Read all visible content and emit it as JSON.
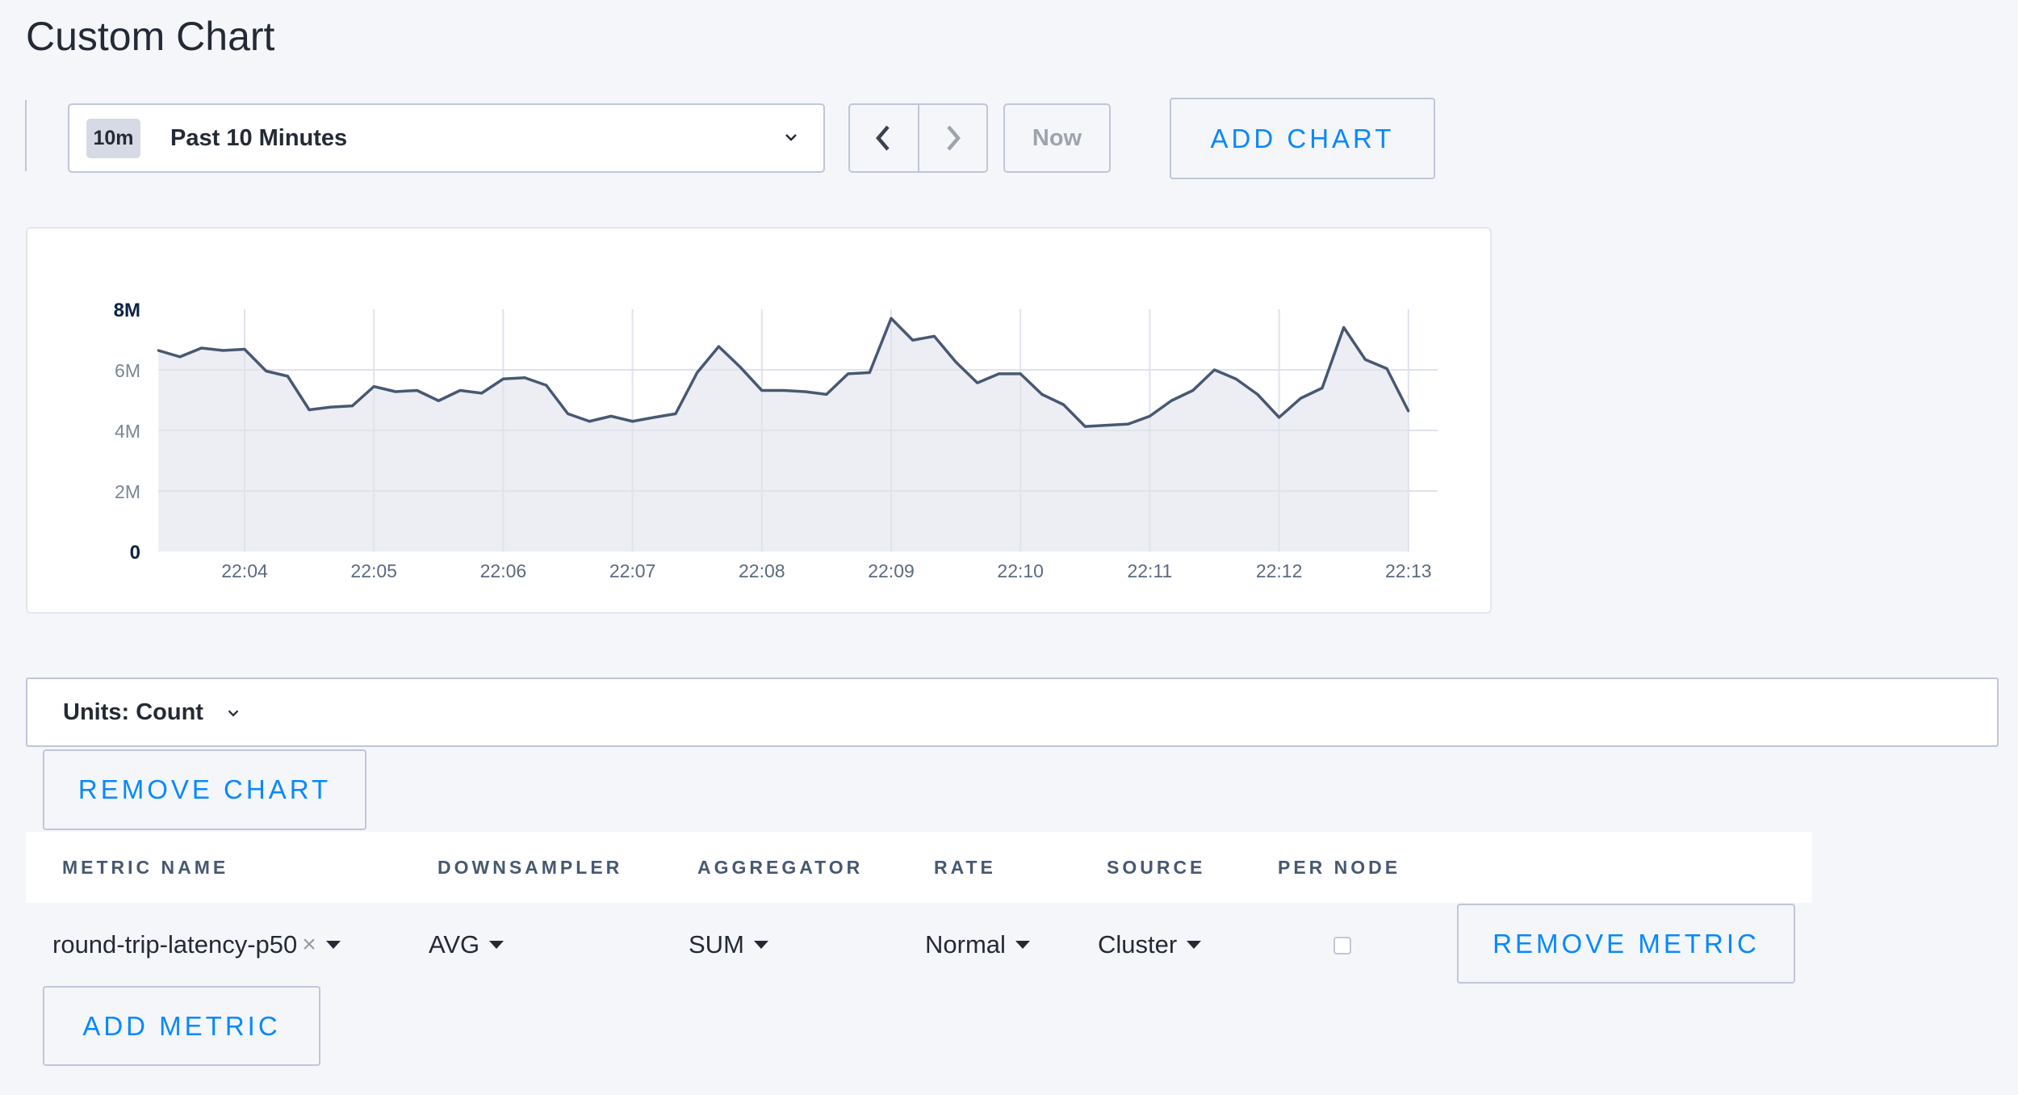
{
  "page": {
    "title": "Custom Chart"
  },
  "toolbar": {
    "range_badge": "10m",
    "range_label": "Past 10 Minutes",
    "now_label": "Now",
    "add_chart_label": "ADD CHART",
    "icons": {
      "dropdown": "chevron-down-icon",
      "prev": "chevron-left-icon",
      "next": "chevron-right-icon"
    }
  },
  "colors": {
    "accent": "#0788ff",
    "line": "#475872",
    "area": "#eceef3",
    "background": "#f5f6fa"
  },
  "chart_data": {
    "type": "area",
    "title": "",
    "xlabel": "",
    "ylabel": "",
    "ylim": [
      0,
      8000000
    ],
    "yticks": [
      {
        "v": 0,
        "label": "0"
      },
      {
        "v": 2000000,
        "label": "2M"
      },
      {
        "v": 4000000,
        "label": "4M"
      },
      {
        "v": 6000000,
        "label": "6M"
      },
      {
        "v": 8000000,
        "label": "8M"
      }
    ],
    "xticks": [
      "22:04",
      "22:05",
      "22:06",
      "22:07",
      "22:08",
      "22:09",
      "22:10",
      "22:11",
      "22:12",
      "22:13"
    ],
    "grid": true,
    "legend": "none",
    "x": [
      "22:03:20",
      "22:03:30",
      "22:03:40",
      "22:03:50",
      "22:04:00",
      "22:04:10",
      "22:04:20",
      "22:04:30",
      "22:04:40",
      "22:04:50",
      "22:05:00",
      "22:05:10",
      "22:05:20",
      "22:05:30",
      "22:05:40",
      "22:05:50",
      "22:06:00",
      "22:06:10",
      "22:06:20",
      "22:06:30",
      "22:06:40",
      "22:06:50",
      "22:07:00",
      "22:07:10",
      "22:07:20",
      "22:07:30",
      "22:07:40",
      "22:07:50",
      "22:08:00",
      "22:08:10",
      "22:08:20",
      "22:08:30",
      "22:08:40",
      "22:08:50",
      "22:09:00",
      "22:09:10",
      "22:09:20",
      "22:09:30",
      "22:09:40",
      "22:09:50",
      "22:10:00",
      "22:10:10",
      "22:10:20",
      "22:10:30",
      "22:10:40",
      "22:10:50",
      "22:11:00",
      "22:11:10",
      "22:11:20",
      "22:11:30",
      "22:11:40",
      "22:11:50",
      "22:12:00",
      "22:12:10",
      "22:12:20",
      "22:12:30",
      "22:12:40",
      "22:12:50",
      "22:13:00"
    ],
    "values": [
      6640000,
      6430000,
      6720000,
      6640000,
      6680000,
      5960000,
      5790000,
      4680000,
      4770000,
      4810000,
      5450000,
      5280000,
      5320000,
      4980000,
      5320000,
      5230000,
      5700000,
      5740000,
      5490000,
      4550000,
      4300000,
      4470000,
      4300000,
      4430000,
      4550000,
      5910000,
      6770000,
      6090000,
      5320000,
      5320000,
      5280000,
      5190000,
      5870000,
      5910000,
      7700000,
      6980000,
      7110000,
      6260000,
      5570000,
      5870000,
      5870000,
      5190000,
      4850000,
      4130000,
      4170000,
      4210000,
      4470000,
      4980000,
      5320000,
      6000000,
      5700000,
      5190000,
      4430000,
      5060000,
      5400000,
      7400000,
      6340000,
      6040000,
      4640000
    ]
  },
  "units": {
    "label": "Units: Count"
  },
  "remove_chart_label": "REMOVE CHART",
  "table": {
    "headers": [
      "METRIC NAME",
      "DOWNSAMPLER",
      "AGGREGATOR",
      "RATE",
      "SOURCE",
      "PER NODE"
    ],
    "rows": [
      {
        "metric": "round-trip-latency-p50",
        "clear": "×",
        "downsampler": "AVG",
        "aggregator": "SUM",
        "rate": "Normal",
        "source": "Cluster",
        "per_node": false,
        "remove_label": "REMOVE METRIC"
      }
    ]
  },
  "add_metric_label": "ADD METRIC"
}
